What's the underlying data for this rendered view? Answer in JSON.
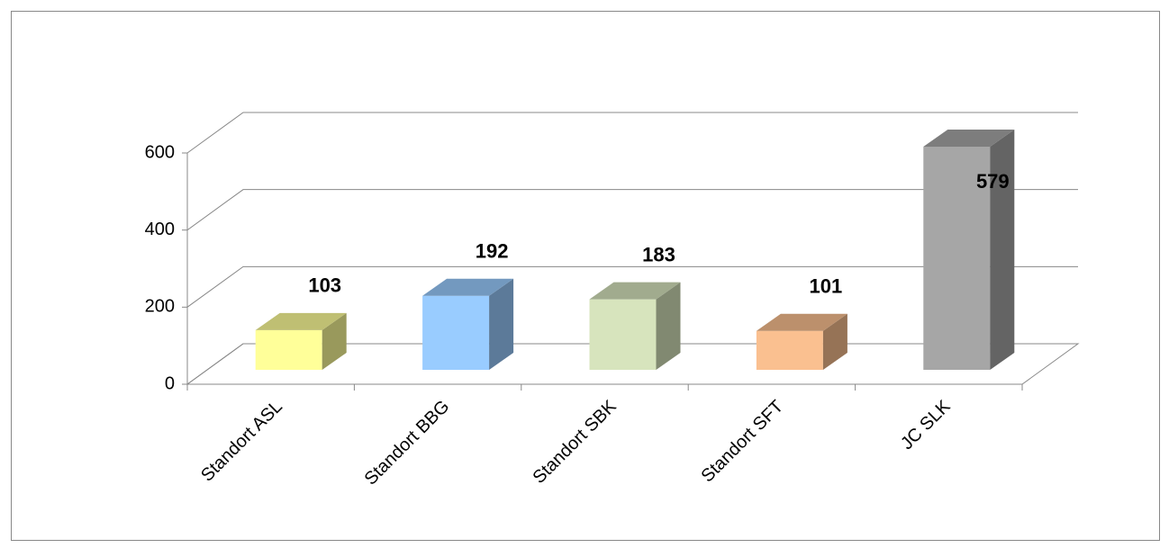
{
  "chart_data": {
    "type": "bar3d",
    "categories": [
      "Standort ASL",
      "Standort BBG",
      "Standort SBK",
      "Standort SFT",
      "JC SLK"
    ],
    "values": [
      103,
      192,
      183,
      101,
      579
    ],
    "colors": [
      "#ffff99",
      "#99ccff",
      "#d7e4bd",
      "#fac090",
      "#a6a6a6"
    ],
    "ylim": [
      0,
      600
    ],
    "yticks": [
      0,
      200,
      400,
      600
    ],
    "grid": true
  }
}
